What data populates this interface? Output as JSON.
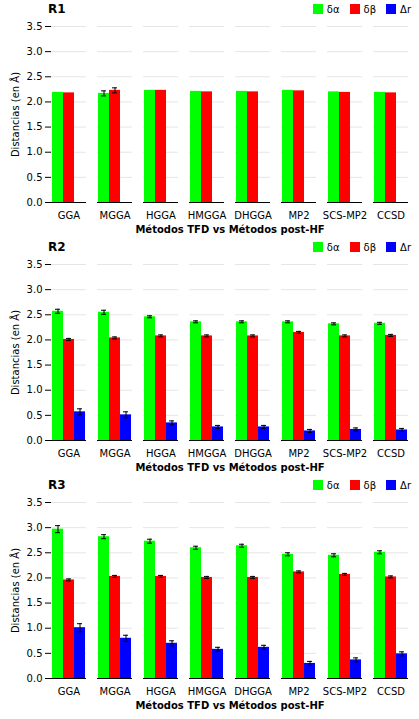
{
  "chart_data": [
    {
      "type": "bar",
      "title": "R1",
      "xlabel": "Métodos TFD vs Métodos post-HF",
      "ylabel": "Distancias (en Å)",
      "categories": [
        "GGA",
        "MGGA",
        "HGGA",
        "HMGGA",
        "DHGGA",
        "MP2",
        "SCS-MP2",
        "CCSD"
      ],
      "series": [
        {
          "name": "δα",
          "color": "#00FF00",
          "values": [
            2.19,
            2.17,
            2.23,
            2.21,
            2.21,
            2.23,
            2.2,
            2.19
          ],
          "errors": [
            0.0,
            0.05,
            0.0,
            0.0,
            0.0,
            0.0,
            0.0,
            0.0
          ]
        },
        {
          "name": "δβ",
          "color": "#FF0000",
          "values": [
            2.18,
            2.23,
            2.23,
            2.2,
            2.2,
            2.22,
            2.19,
            2.18
          ],
          "errors": [
            0.0,
            0.05,
            0.0,
            0.0,
            0.0,
            0.0,
            0.0,
            0.0
          ]
        },
        {
          "name": "Δr",
          "color": "#0000FF",
          "values": [
            0.0,
            0.0,
            0.0,
            0.0,
            0.0,
            0.0,
            0.0,
            0.0
          ],
          "errors": [
            0.0,
            0.0,
            0.0,
            0.0,
            0.0,
            0.0,
            0.0,
            0.0
          ]
        }
      ],
      "ylim": [
        0.0,
        3.5
      ],
      "yticks": [
        {
          "value": 0.0,
          "label": "0.0"
        },
        0.5,
        {
          "value": 1.0,
          "label": "1.0"
        },
        1.5,
        {
          "value": 2.0,
          "label": "2.0"
        },
        2.5,
        {
          "value": 3.0,
          "label": "3.0"
        },
        3.5
      ],
      "grid": true,
      "legend": "upper right"
    },
    {
      "type": "bar",
      "title": "R2",
      "xlabel": "Métodos TFD vs Métodos post-HF",
      "ylabel": "Distancias (en Å)",
      "categories": [
        "GGA",
        "MGGA",
        "HGGA",
        "HMGGA",
        "DHGGA",
        "MP2",
        "SCS-MP2",
        "CCSD"
      ],
      "series": [
        {
          "name": "δα",
          "color": "#00FF00",
          "values": [
            2.57,
            2.55,
            2.46,
            2.36,
            2.36,
            2.36,
            2.32,
            2.33
          ],
          "errors": [
            0.04,
            0.04,
            0.02,
            0.02,
            0.02,
            0.02,
            0.02,
            0.02
          ]
        },
        {
          "name": "δβ",
          "color": "#FF0000",
          "values": [
            2.01,
            2.04,
            2.08,
            2.08,
            2.08,
            2.15,
            2.08,
            2.09
          ],
          "errors": [
            0.02,
            0.02,
            0.02,
            0.02,
            0.02,
            0.02,
            0.02,
            0.02
          ]
        },
        {
          "name": "Δr",
          "color": "#0000FF",
          "values": [
            0.57,
            0.51,
            0.35,
            0.27,
            0.27,
            0.19,
            0.22,
            0.21
          ],
          "errors": [
            0.06,
            0.06,
            0.04,
            0.03,
            0.03,
            0.03,
            0.03,
            0.03
          ]
        }
      ],
      "ylim": [
        0.0,
        3.5
      ],
      "yticks": [
        {
          "value": 0.0,
          "label": "0.0"
        },
        0.5,
        {
          "value": 1.0,
          "label": "1.0"
        },
        1.5,
        {
          "value": 2.0,
          "label": "2.0"
        },
        2.5,
        {
          "value": 3.0,
          "label": "3.0"
        },
        3.5
      ],
      "grid": true,
      "legend": "upper right"
    },
    {
      "type": "bar",
      "title": "R3",
      "xlabel": "Métodos TFD vs Métodos post-HF",
      "ylabel": "Distancias (en Å)",
      "categories": [
        "GGA",
        "MGGA",
        "HGGA",
        "HMGGA",
        "DHGGA",
        "MP2",
        "SCS-MP2",
        "CCSD"
      ],
      "series": [
        {
          "name": "δα",
          "color": "#00FF00",
          "values": [
            2.97,
            2.82,
            2.73,
            2.6,
            2.64,
            2.47,
            2.45,
            2.51
          ],
          "errors": [
            0.07,
            0.04,
            0.04,
            0.03,
            0.03,
            0.03,
            0.03,
            0.03
          ]
        },
        {
          "name": "δβ",
          "color": "#FF0000",
          "values": [
            1.96,
            2.03,
            2.03,
            2.01,
            2.01,
            2.12,
            2.07,
            2.02
          ],
          "errors": [
            0.02,
            0.02,
            0.02,
            0.02,
            0.02,
            0.02,
            0.02,
            0.02
          ]
        },
        {
          "name": "Δr",
          "color": "#0000FF",
          "values": [
            1.01,
            0.8,
            0.7,
            0.58,
            0.62,
            0.3,
            0.37,
            0.49
          ],
          "errors": [
            0.08,
            0.06,
            0.05,
            0.04,
            0.04,
            0.04,
            0.04,
            0.04
          ]
        }
      ],
      "ylim": [
        0.0,
        3.5
      ],
      "yticks": [
        {
          "value": 0.0,
          "label": "0.0"
        },
        0.5,
        {
          "value": 1.0,
          "label": "1.0"
        },
        1.5,
        {
          "value": 2.0,
          "label": "2.0"
        },
        2.5,
        {
          "value": 3.0,
          "label": "3.0"
        },
        3.5
      ],
      "grid": true,
      "legend": "upper right"
    }
  ]
}
